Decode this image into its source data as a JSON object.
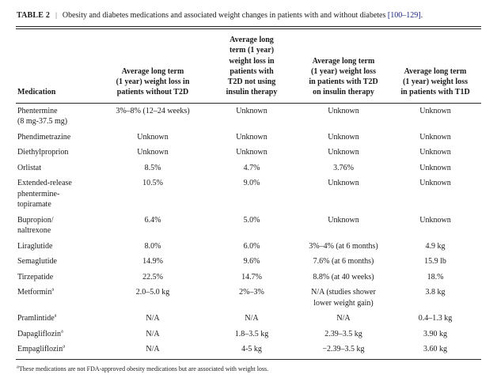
{
  "header": {
    "label": "TABLE 2",
    "separator": "|",
    "caption": "Obesity and diabetes medications and associated weight changes in patients with and without diabetes ",
    "citation": "[100–129]",
    "caption_end": ".",
    "citation_color": "#1a237e"
  },
  "table": {
    "columns": [
      "Medication",
      "Average long term\n(1 year) weight loss in\npatients without T2D",
      "Average long\nterm (1 year)\nweight loss in\npatients with\nT2D not using\ninsulin therapy",
      "Average long term\n(1 year) weight loss\nin patients with T2D\non insulin therapy",
      "Average long term\n(1 year) weight loss\nin patients with T1D"
    ],
    "rows": [
      {
        "name": "Phentermine\n(8 mg-37.5 mg)",
        "sup": "",
        "values": [
          "3%–8% (12–24 weeks)",
          "Unknown",
          "Unknown",
          "Unknown"
        ]
      },
      {
        "name": "Phendimetrazine",
        "sup": "",
        "values": [
          "Unknown",
          "Unknown",
          "Unknown",
          "Unknown"
        ]
      },
      {
        "name": "Diethylproprion",
        "sup": "",
        "values": [
          "Unknown",
          "Unknown",
          "Unknown",
          "Unknown"
        ]
      },
      {
        "name": "Orlistat",
        "sup": "",
        "values": [
          "8.5%",
          "4.7%",
          "3.76%",
          "Unknown"
        ]
      },
      {
        "name": "Extended-release\nphentermine-\ntopiramate",
        "sup": "",
        "values": [
          "10.5%",
          "9.0%",
          "Unknown",
          "Unknown"
        ]
      },
      {
        "name": "Bupropion/\nnaltrexone",
        "sup": "",
        "values": [
          "6.4%",
          "5.0%",
          "Unknown",
          "Unknown"
        ]
      },
      {
        "name": "Liraglutide",
        "sup": "",
        "values": [
          "8.0%",
          "6.0%",
          "3%–4% (at 6 months)",
          "4.9 kg"
        ]
      },
      {
        "name": "Semaglutide",
        "sup": "",
        "values": [
          "14.9%",
          "9.6%",
          "7.6% (at 6 months)",
          "15.9 lb"
        ]
      },
      {
        "name": "Tirzepatide",
        "sup": "",
        "values": [
          "22.5%",
          "14.7%",
          "8.8% (at 40 weeks)",
          "18.%"
        ]
      },
      {
        "name": "Metformin",
        "sup": "a",
        "values": [
          "2.0–5.0 kg",
          "2%–3%",
          "N/A (studies shower\nlower weight gain)",
          "3.8 kg"
        ]
      },
      {
        "name": "Pramlintide",
        "sup": "a",
        "values": [
          "N/A",
          "N/A",
          "N/A",
          "0.4–1.3 kg"
        ]
      },
      {
        "name": "Dapagliflozin",
        "sup": "a",
        "values": [
          "N/A",
          "1.8–3.5 kg",
          "2.39–3.5 kg",
          "3.90 kg"
        ]
      },
      {
        "name": "Empagliflozin",
        "sup": "a",
        "values": [
          "N/A",
          "4-5 kg",
          "−2.39–3.5 kg",
          "3.60 kg"
        ]
      }
    ]
  },
  "footnote": {
    "marker": "a",
    "text": "These medications are not FDA-approved obesity medications but are associated with weight loss."
  }
}
